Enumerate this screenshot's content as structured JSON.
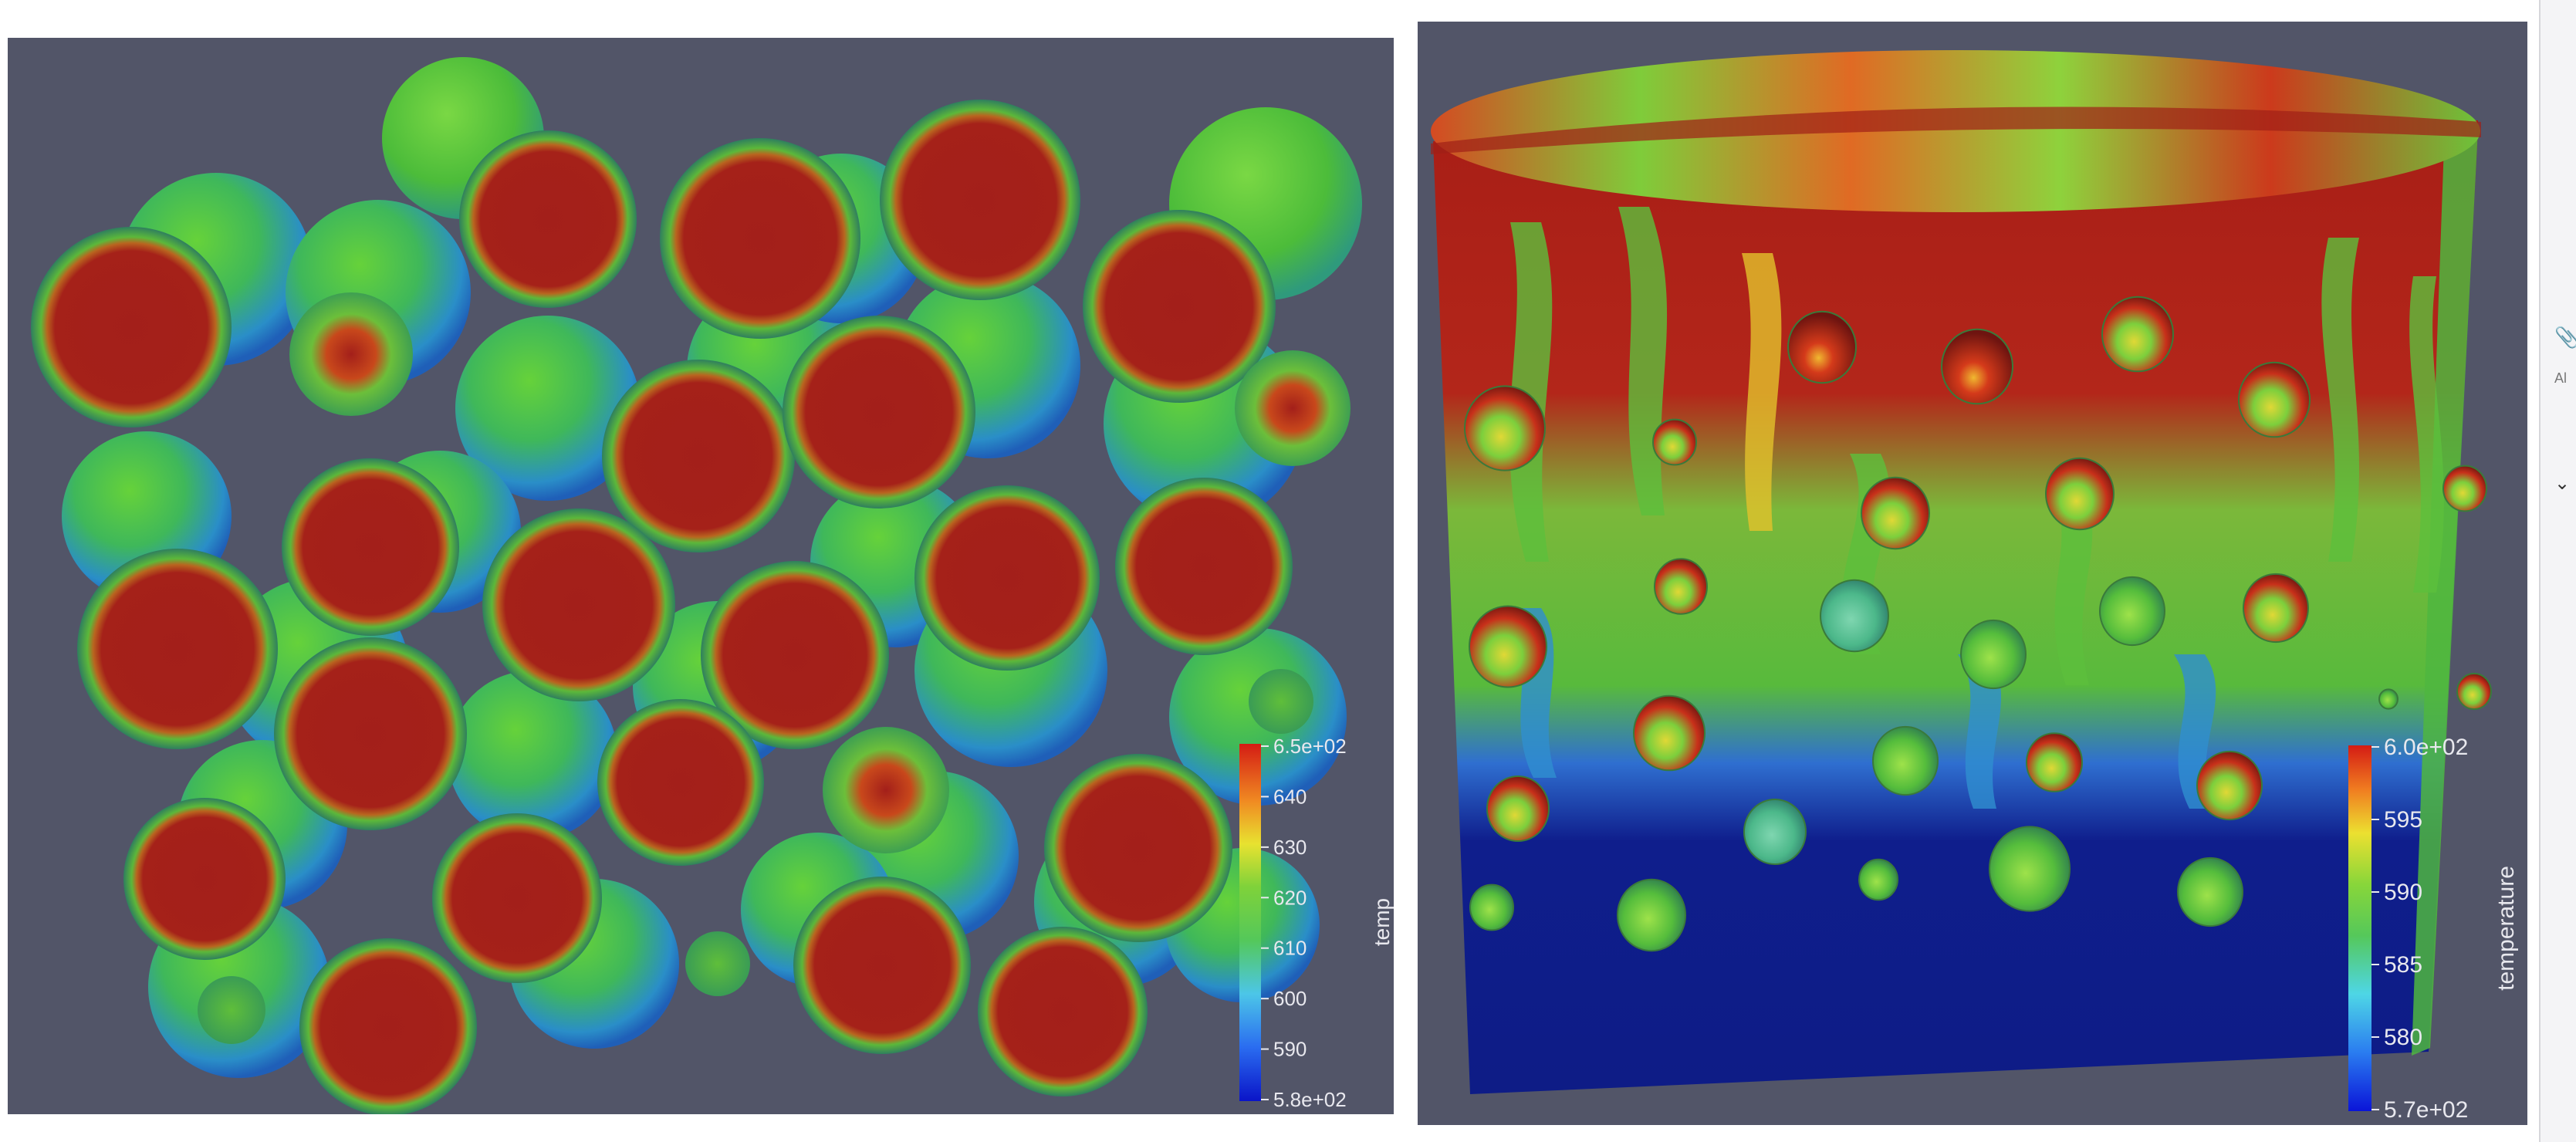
{
  "left_view": {
    "colorbar": {
      "title": "temp",
      "ticks": [
        "6.5e+02",
        "640",
        "630",
        "620",
        "610",
        "600",
        "590",
        "5.8e+02"
      ],
      "min": 580,
      "max": 650
    }
  },
  "right_view": {
    "colorbar": {
      "title": "temperature",
      "ticks": [
        "6.0e+02",
        "595",
        "590",
        "585",
        "580",
        "5.7e+02"
      ],
      "min": 570,
      "max": 600
    }
  },
  "colors": {
    "viewport_background": "#525568",
    "hot": "#a31f1a",
    "mid": "#5cc23a",
    "cold": "#0f1e8c"
  },
  "sidebar": {
    "icons": [
      "paperclip-icon",
      "chevron-down-icon"
    ],
    "text": "Al"
  }
}
